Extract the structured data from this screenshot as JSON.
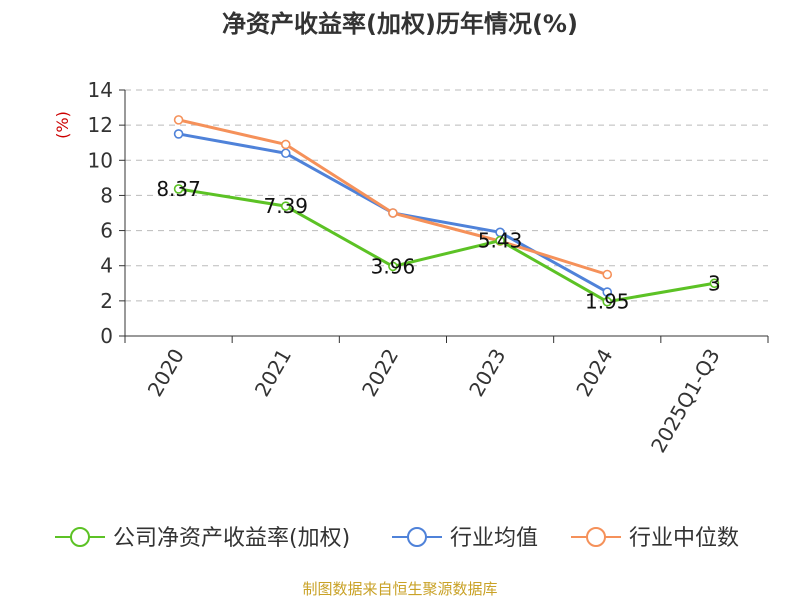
{
  "chart_data": {
    "type": "line",
    "title": "净资产收益率(加权)历年情况(%)",
    "ylabel": "(%)",
    "xlabel": "",
    "categories": [
      "2020",
      "2021",
      "2022",
      "2023",
      "2024",
      "2025Q1-Q3"
    ],
    "ylim": [
      0,
      14
    ],
    "yticks": [
      0,
      2,
      4,
      6,
      8,
      10,
      12,
      14
    ],
    "ytick_labels": [
      "0",
      "2",
      "4",
      "6",
      "8",
      "10",
      "12",
      "14"
    ],
    "grid": true,
    "legend_position": "bottom",
    "series": [
      {
        "name": "公司净资产收益率(加权)",
        "color": "#5cc225",
        "values": [
          8.37,
          7.39,
          3.96,
          5.43,
          1.95,
          3
        ],
        "labels": [
          "8.37",
          "7.39",
          "3.96",
          "5.43",
          "1.95",
          "3"
        ]
      },
      {
        "name": "行业均值",
        "color": "#4f82d9",
        "values": [
          11.5,
          10.4,
          7.0,
          5.9,
          2.5,
          null
        ]
      },
      {
        "name": "行业中位数",
        "color": "#f5915a",
        "values": [
          12.3,
          10.9,
          7.0,
          5.4,
          3.5,
          null
        ]
      }
    ]
  },
  "source": "制图数据来自恒生聚源数据库",
  "colors": {
    "ylabel": "#cc0000",
    "source": "#c9a227",
    "grid": "#bbbbbb",
    "axis": "#333333"
  }
}
